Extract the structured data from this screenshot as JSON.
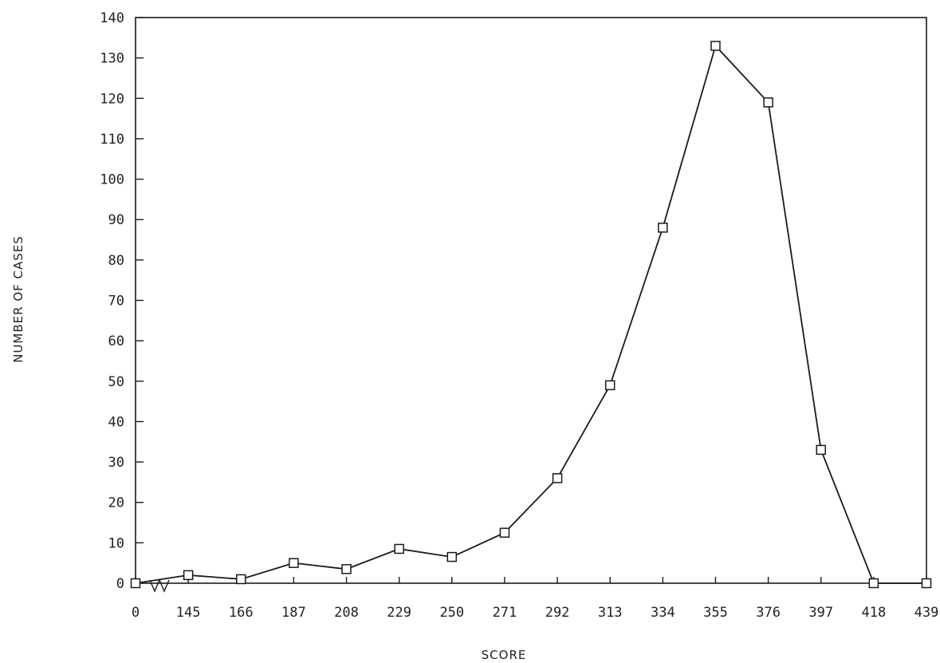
{
  "chart_data": {
    "type": "line",
    "xlabel": "SCORE",
    "ylabel": "NUMBER OF CASES",
    "ylim": [
      0,
      140
    ],
    "yticks": [
      "0",
      "10",
      "20",
      "30",
      "40",
      "50",
      "60",
      "70",
      "80",
      "90",
      "100",
      "110",
      "120",
      "130",
      "140"
    ],
    "categories": [
      "0",
      "145",
      "166",
      "187",
      "208",
      "229",
      "250",
      "271",
      "292",
      "313",
      "334",
      "355",
      "376",
      "397",
      "418",
      "439"
    ],
    "series": [
      {
        "values": [
          0,
          2,
          1,
          5,
          3.5,
          8.5,
          6.5,
          12.5,
          26,
          49,
          88,
          133,
          119,
          33,
          0,
          0
        ],
        "marker": "square",
        "color": "#1a1a1a"
      }
    ],
    "axis_break": true,
    "grid": false,
    "legend": "none"
  }
}
